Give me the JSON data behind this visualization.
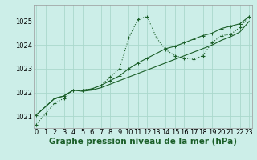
{
  "bg_color": "#cceee8",
  "grid_color": "#aad8cc",
  "line_color": "#1a5e28",
  "xlabel": "Graphe pression niveau de la mer (hPa)",
  "xlabel_fontsize": 7.5,
  "tick_fontsize": 6,
  "xlim": [
    -0.3,
    23.3
  ],
  "ylim": [
    1020.5,
    1025.7
  ],
  "yticks": [
    1021,
    1022,
    1023,
    1024,
    1025
  ],
  "xticks": [
    0,
    1,
    2,
    3,
    4,
    5,
    6,
    7,
    8,
    9,
    10,
    11,
    12,
    13,
    14,
    15,
    16,
    17,
    18,
    19,
    20,
    21,
    22,
    23
  ],
  "s1_x": [
    0,
    1,
    2,
    3,
    4,
    5,
    6,
    7,
    8,
    9,
    10,
    11,
    12,
    13,
    14,
    15,
    16,
    17,
    18,
    19,
    20,
    21,
    22,
    23
  ],
  "s1_y": [
    1020.65,
    1021.1,
    1021.55,
    1021.75,
    1022.1,
    1022.1,
    1022.15,
    1022.3,
    1022.65,
    1023.0,
    1024.3,
    1025.1,
    1025.2,
    1024.3,
    1023.8,
    1023.55,
    1023.45,
    1023.4,
    1023.55,
    1024.1,
    1024.4,
    1024.45,
    1024.75,
    1025.2
  ],
  "s2_x": [
    0,
    2,
    3,
    4,
    5,
    6,
    7,
    8,
    9,
    10,
    11,
    12,
    13,
    14,
    15,
    16,
    17,
    18,
    19,
    20,
    21,
    22,
    23
  ],
  "s2_y": [
    1021.05,
    1021.75,
    1021.85,
    1022.1,
    1022.1,
    1022.15,
    1022.3,
    1022.5,
    1022.7,
    1023.0,
    1023.25,
    1023.45,
    1023.65,
    1023.85,
    1023.95,
    1024.1,
    1024.25,
    1024.4,
    1024.5,
    1024.7,
    1024.8,
    1024.9,
    1025.2
  ],
  "s3_x": [
    0,
    2,
    3,
    4,
    5,
    6,
    7,
    8,
    9,
    10,
    11,
    12,
    13,
    14,
    15,
    16,
    17,
    18,
    19,
    20,
    21,
    22,
    23
  ],
  "s3_y": [
    1021.05,
    1021.75,
    1021.85,
    1022.1,
    1022.05,
    1022.1,
    1022.2,
    1022.35,
    1022.5,
    1022.65,
    1022.8,
    1022.95,
    1023.1,
    1023.25,
    1023.4,
    1023.55,
    1023.7,
    1023.85,
    1024.0,
    1024.2,
    1024.35,
    1024.55,
    1025.0
  ]
}
